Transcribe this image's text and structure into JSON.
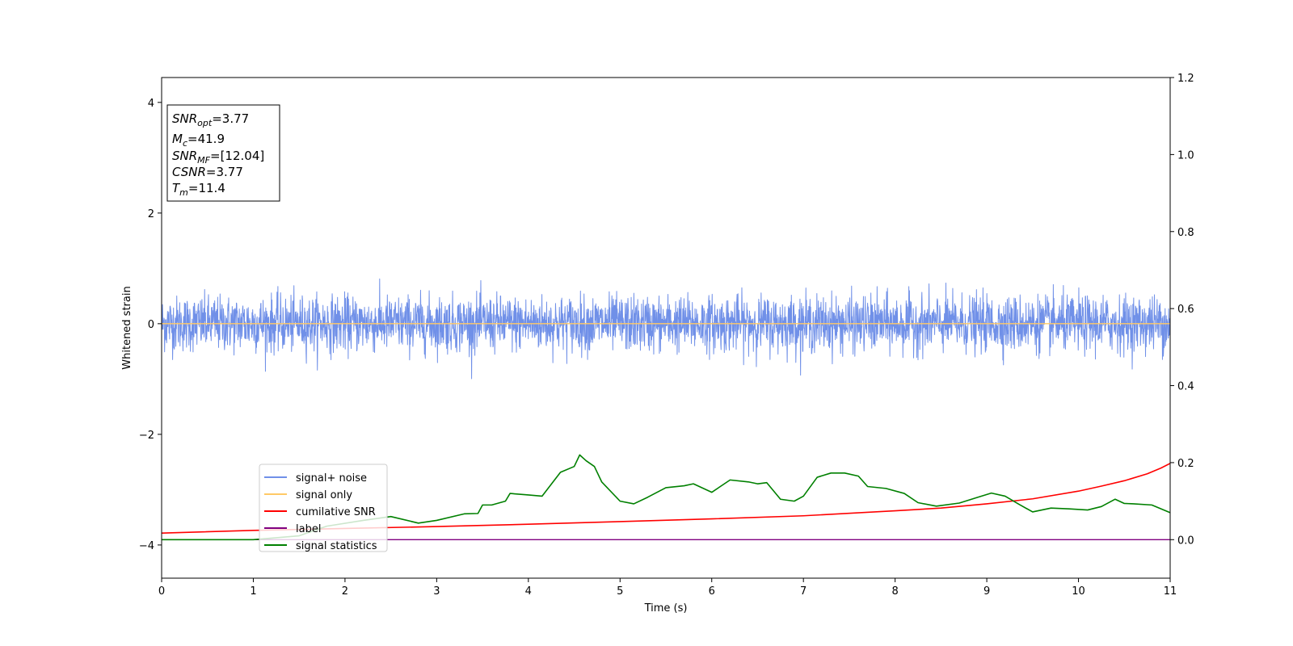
{
  "chart_data": {
    "type": "line",
    "xlabel": "Time (s)",
    "ylabel": "Whitened strain",
    "xlim": [
      0,
      11
    ],
    "ylim_left": [
      -4.6,
      4.45
    ],
    "ylim_right": [
      -0.1,
      1.2
    ],
    "x_ticks": [
      "0",
      "1",
      "2",
      "3",
      "4",
      "5",
      "6",
      "7",
      "8",
      "9",
      "10",
      "11"
    ],
    "y_left_ticks": [
      "−4",
      "−2",
      "0",
      "2",
      "4"
    ],
    "y_left_tick_values": [
      -4,
      -2,
      0,
      2,
      4
    ],
    "y_right_ticks": [
      "0.0",
      "0.2",
      "0.4",
      "0.6",
      "0.8",
      "1.0",
      "1.2"
    ],
    "y_right_tick_values": [
      0.0,
      0.2,
      0.4,
      0.6,
      0.8,
      1.0,
      1.2
    ],
    "annotation": [
      {
        "var": "SNR",
        "sub": "opt",
        "value": "=3.77"
      },
      {
        "var": "M",
        "sub": "c",
        "value": "=41.9"
      },
      {
        "var": "SNR",
        "sub": "MF",
        "value": "=[12.04]"
      },
      {
        "var": "CSNR",
        "sub": "",
        "value": "=3.77"
      },
      {
        "var": "T",
        "sub": "m",
        "value": "=11.4"
      }
    ],
    "legend": {
      "placement": "lower-left",
      "entries": [
        {
          "label": "signal+ noise",
          "color": "#7090e8"
        },
        {
          "label": "signal only",
          "color": "#ffc966"
        },
        {
          "label": "cumilative SNR",
          "color": "#ff0000"
        },
        {
          "label": "label",
          "color": "#800080"
        },
        {
          "label": "signal statistics",
          "color": "#008000"
        }
      ]
    },
    "series": [
      {
        "name": "signal+ noise",
        "axis": "left",
        "kind": "noise",
        "color": "#7090e8",
        "mean": 0.0,
        "typical_amplitude": 0.55,
        "peak_amplitude": 1.15
      },
      {
        "name": "signal only",
        "axis": "left",
        "kind": "flat",
        "color": "#ffc966",
        "value": 0.0
      },
      {
        "name": "cumilative SNR",
        "axis": "right",
        "color": "#ff0000",
        "x": [
          0,
          1,
          2,
          3,
          4,
          5,
          6,
          7,
          8,
          8.5,
          9,
          9.5,
          10,
          10.25,
          10.5,
          10.75,
          10.9,
          11
        ],
        "y": [
          0.017,
          0.024,
          0.029,
          0.034,
          0.04,
          0.047,
          0.054,
          0.062,
          0.075,
          0.082,
          0.093,
          0.106,
          0.126,
          0.139,
          0.153,
          0.171,
          0.186,
          0.198
        ]
      },
      {
        "name": "label",
        "axis": "right",
        "kind": "flat",
        "color": "#800080",
        "value": 0.0
      },
      {
        "name": "signal statistics",
        "axis": "right",
        "color": "#008000",
        "x": [
          0,
          0.5,
          1,
          1.5,
          1.8,
          2.2,
          2.5,
          2.8,
          3.0,
          3.3,
          3.45,
          3.5,
          3.6,
          3.75,
          3.8,
          4.0,
          4.15,
          4.35,
          4.5,
          4.56,
          4.63,
          4.72,
          4.8,
          5.0,
          5.15,
          5.3,
          5.5,
          5.7,
          5.8,
          6.0,
          6.2,
          6.4,
          6.5,
          6.6,
          6.75,
          6.9,
          7.0,
          7.15,
          7.3,
          7.45,
          7.6,
          7.7,
          7.9,
          8.1,
          8.25,
          8.45,
          8.7,
          8.9,
          9.05,
          9.2,
          9.35,
          9.5,
          9.7,
          9.9,
          10.1,
          10.25,
          10.4,
          10.5,
          10.6,
          10.8,
          11
        ],
        "y": [
          0.0,
          0.0,
          0.0,
          0.01,
          0.035,
          0.05,
          0.06,
          0.043,
          0.05,
          0.067,
          0.068,
          0.09,
          0.09,
          0.1,
          0.12,
          0.116,
          0.113,
          0.175,
          0.19,
          0.22,
          0.205,
          0.19,
          0.15,
          0.1,
          0.093,
          0.11,
          0.135,
          0.14,
          0.145,
          0.123,
          0.155,
          0.15,
          0.145,
          0.148,
          0.105,
          0.1,
          0.113,
          0.162,
          0.173,
          0.173,
          0.165,
          0.138,
          0.133,
          0.12,
          0.096,
          0.087,
          0.095,
          0.11,
          0.121,
          0.113,
          0.092,
          0.072,
          0.082,
          0.08,
          0.077,
          0.086,
          0.105,
          0.094,
          0.093,
          0.09,
          0.07
        ]
      }
    ]
  }
}
